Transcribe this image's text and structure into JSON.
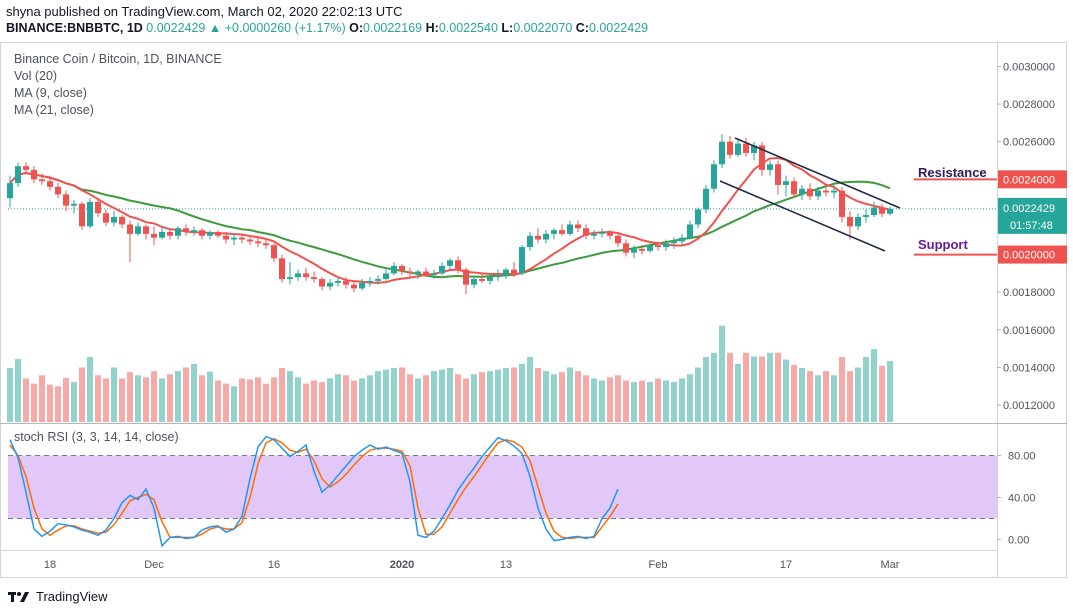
{
  "header": {
    "published": "shyna published on TradingView.com, March 02, 2020 22:02:13 UTC",
    "symbol": "BINANCE:BNBBTC, 1D",
    "last": "0.0022429",
    "change": "▲ +0.0000260 (+1.17%)",
    "o_label": "O:",
    "o": "0.0022169",
    "h_label": "H:",
    "h": "0.0022540",
    "l_label": "L:",
    "l": "0.0022070",
    "c_label": "C:",
    "c": "0.0022429"
  },
  "legend": {
    "title": "Binance Coin / Bitcoin, 1D, BINANCE",
    "vol": "Vol (20)",
    "ma9": "MA (9, close)",
    "ma21": "MA (21, close)",
    "stoch": "stoch RSI (3, 3, 14, 14, close)"
  },
  "annotations": {
    "resistance": "Resistance",
    "support": "Support",
    "resistance_price": "0.0024000",
    "support_price": "0.0020000",
    "current_price": "0.0022429",
    "countdown": "01:57:48"
  },
  "footer": {
    "brand": "TradingView"
  },
  "colors": {
    "up": "#26a69a",
    "down": "#ef5350",
    "ma9": "#f2524f",
    "ma21": "#3d9b3d",
    "stoch_k": "#2196f3",
    "stoch_d": "#ff6d00",
    "stoch_band": "#e1c8f8",
    "channel": "#1e2a4a",
    "resistance_text": "#311b58",
    "support_text": "#6a1b9a"
  },
  "chart_data": {
    "type": "candlestick",
    "price_axis": {
      "ticks": [
        "0.0030000",
        "0.0028000",
        "0.0026000",
        "0.0024000",
        "0.0022429",
        "0.0020000",
        "0.0018000",
        "0.0016000",
        "0.0014000",
        "0.0012000"
      ],
      "ylim": [
        0.00111,
        0.00313
      ]
    },
    "stoch_axis": {
      "ticks": [
        "80.00",
        "40.00",
        "0.00"
      ],
      "ylim": [
        -10,
        110
      ],
      "band": [
        20,
        80
      ]
    },
    "x_ticks": [
      {
        "label": "18",
        "index": 5
      },
      {
        "label": "Dec",
        "index": 18
      },
      {
        "label": "16",
        "index": 33
      },
      {
        "label": "2020",
        "index": 49
      },
      {
        "label": "13",
        "index": 62
      },
      {
        "label": "Feb",
        "index": 81
      },
      {
        "label": "17",
        "index": 97
      },
      {
        "label": "Mar",
        "index": 110
      }
    ],
    "candles": [
      [
        0.0023,
        0.00242,
        0.00225,
        0.00238
      ],
      [
        0.00238,
        0.00249,
        0.00236,
        0.00247
      ],
      [
        0.00247,
        0.00249,
        0.00243,
        0.00245
      ],
      [
        0.00245,
        0.00247,
        0.00238,
        0.0024
      ],
      [
        0.0024,
        0.00243,
        0.00237,
        0.00239
      ],
      [
        0.00239,
        0.00242,
        0.00234,
        0.00236
      ],
      [
        0.00236,
        0.00238,
        0.0023,
        0.00232
      ],
      [
        0.00232,
        0.00234,
        0.00223,
        0.00226
      ],
      [
        0.00226,
        0.00229,
        0.00222,
        0.00227
      ],
      [
        0.00227,
        0.00228,
        0.00213,
        0.00215
      ],
      [
        0.00215,
        0.0023,
        0.00214,
        0.00228
      ],
      [
        0.00228,
        0.0023,
        0.0022,
        0.00222
      ],
      [
        0.00222,
        0.00224,
        0.00215,
        0.00217
      ],
      [
        0.00217,
        0.00223,
        0.00215,
        0.0022
      ],
      [
        0.0022,
        0.00221,
        0.00214,
        0.00216
      ],
      [
        0.00216,
        0.00218,
        0.00196,
        0.00211
      ],
      [
        0.00211,
        0.00217,
        0.0021,
        0.00215
      ],
      [
        0.00215,
        0.00216,
        0.00208,
        0.00211
      ],
      [
        0.00211,
        0.00215,
        0.00205,
        0.00209
      ],
      [
        0.00209,
        0.00215,
        0.00208,
        0.00212
      ],
      [
        0.00212,
        0.00214,
        0.00208,
        0.0021
      ],
      [
        0.0021,
        0.00215,
        0.00208,
        0.00214
      ],
      [
        0.00214,
        0.00216,
        0.0021,
        0.00212
      ],
      [
        0.00212,
        0.00215,
        0.0021,
        0.00213
      ],
      [
        0.00213,
        0.00214,
        0.00208,
        0.0021
      ],
      [
        0.0021,
        0.00213,
        0.00208,
        0.00212
      ],
      [
        0.00212,
        0.00213,
        0.00209,
        0.0021
      ],
      [
        0.0021,
        0.00212,
        0.00206,
        0.00208
      ],
      [
        0.00208,
        0.00211,
        0.00205,
        0.00209
      ],
      [
        0.00209,
        0.00211,
        0.00206,
        0.00208
      ],
      [
        0.00208,
        0.0021,
        0.00205,
        0.00207
      ],
      [
        0.00207,
        0.0021,
        0.00204,
        0.00206
      ],
      [
        0.00206,
        0.00208,
        0.00203,
        0.00205
      ],
      [
        0.00205,
        0.00206,
        0.00196,
        0.00198
      ],
      [
        0.00198,
        0.002,
        0.00185,
        0.00187
      ],
      [
        0.00187,
        0.00196,
        0.00184,
        0.00188
      ],
      [
        0.00188,
        0.00192,
        0.00186,
        0.0019
      ],
      [
        0.0019,
        0.00193,
        0.00186,
        0.00188
      ],
      [
        0.00188,
        0.00191,
        0.00185,
        0.00187
      ],
      [
        0.00187,
        0.00188,
        0.00181,
        0.00183
      ],
      [
        0.00183,
        0.00187,
        0.00181,
        0.00185
      ],
      [
        0.00185,
        0.00188,
        0.00183,
        0.00186
      ],
      [
        0.00186,
        0.00188,
        0.00182,
        0.00184
      ],
      [
        0.00184,
        0.00186,
        0.0018,
        0.00182
      ],
      [
        0.00182,
        0.00187,
        0.00181,
        0.00185
      ],
      [
        0.00185,
        0.00188,
        0.00183,
        0.00186
      ],
      [
        0.00186,
        0.00189,
        0.00184,
        0.00187
      ],
      [
        0.00187,
        0.00192,
        0.00186,
        0.0019
      ],
      [
        0.0019,
        0.00196,
        0.00189,
        0.00194
      ],
      [
        0.00194,
        0.00195,
        0.00189,
        0.00191
      ],
      [
        0.00191,
        0.00193,
        0.00188,
        0.0019
      ],
      [
        0.0019,
        0.00192,
        0.00187,
        0.00191
      ],
      [
        0.00191,
        0.00193,
        0.00188,
        0.00189
      ],
      [
        0.00189,
        0.00192,
        0.00187,
        0.0019
      ],
      [
        0.0019,
        0.00196,
        0.00189,
        0.00194
      ],
      [
        0.00194,
        0.00198,
        0.00192,
        0.00197
      ],
      [
        0.00197,
        0.00199,
        0.0019,
        0.00192
      ],
      [
        0.00192,
        0.00193,
        0.00179,
        0.00184
      ],
      [
        0.00184,
        0.00189,
        0.00182,
        0.00187
      ],
      [
        0.00187,
        0.0019,
        0.00185,
        0.00186
      ],
      [
        0.00186,
        0.00189,
        0.00184,
        0.00188
      ],
      [
        0.00188,
        0.00192,
        0.00186,
        0.00189
      ],
      [
        0.00189,
        0.00193,
        0.00187,
        0.00192
      ],
      [
        0.00192,
        0.00196,
        0.00188,
        0.0019
      ],
      [
        0.0019,
        0.00205,
        0.00189,
        0.00204
      ],
      [
        0.00204,
        0.00212,
        0.00202,
        0.0021
      ],
      [
        0.0021,
        0.00214,
        0.00206,
        0.00208
      ],
      [
        0.00208,
        0.00213,
        0.00206,
        0.00211
      ],
      [
        0.00211,
        0.00214,
        0.00208,
        0.00213
      ],
      [
        0.00213,
        0.00216,
        0.0021,
        0.00211
      ],
      [
        0.00211,
        0.00218,
        0.0021,
        0.00216
      ],
      [
        0.00216,
        0.00218,
        0.00212,
        0.00214
      ],
      [
        0.00214,
        0.00216,
        0.00208,
        0.0021
      ],
      [
        0.0021,
        0.00213,
        0.00208,
        0.00211
      ],
      [
        0.00211,
        0.00214,
        0.00209,
        0.00212
      ],
      [
        0.00212,
        0.00213,
        0.00208,
        0.0021
      ],
      [
        0.0021,
        0.00212,
        0.00204,
        0.00206
      ],
      [
        0.00206,
        0.00208,
        0.00199,
        0.00201
      ],
      [
        0.00201,
        0.00205,
        0.00198,
        0.00203
      ],
      [
        0.00203,
        0.00205,
        0.002,
        0.00202
      ],
      [
        0.00202,
        0.00206,
        0.00201,
        0.00205
      ],
      [
        0.00205,
        0.00207,
        0.00202,
        0.00204
      ],
      [
        0.00204,
        0.00208,
        0.00202,
        0.00206
      ],
      [
        0.00206,
        0.00209,
        0.00203,
        0.00207
      ],
      [
        0.00207,
        0.00211,
        0.00205,
        0.00209
      ],
      [
        0.00209,
        0.00218,
        0.00208,
        0.00216
      ],
      [
        0.00216,
        0.00225,
        0.00214,
        0.00224
      ],
      [
        0.00224,
        0.00237,
        0.00222,
        0.00235
      ],
      [
        0.00235,
        0.0025,
        0.00233,
        0.00248
      ],
      [
        0.00248,
        0.00264,
        0.00246,
        0.0026
      ],
      [
        0.0026,
        0.00263,
        0.00251,
        0.00253
      ],
      [
        0.00253,
        0.00261,
        0.00252,
        0.00259
      ],
      [
        0.00259,
        0.00262,
        0.00252,
        0.00254
      ],
      [
        0.00254,
        0.0026,
        0.0025,
        0.00258
      ],
      [
        0.00258,
        0.0026,
        0.00242,
        0.00245
      ],
      [
        0.00245,
        0.0025,
        0.00242,
        0.00248
      ],
      [
        0.00248,
        0.0025,
        0.00232,
        0.00237
      ],
      [
        0.00237,
        0.00242,
        0.00231,
        0.00239
      ],
      [
        0.00239,
        0.00241,
        0.0023,
        0.00232
      ],
      [
        0.00232,
        0.00237,
        0.00229,
        0.00235
      ],
      [
        0.00235,
        0.00238,
        0.00229,
        0.00231
      ],
      [
        0.00231,
        0.00236,
        0.00229,
        0.00234
      ],
      [
        0.00234,
        0.00236,
        0.00231,
        0.00233
      ],
      [
        0.00233,
        0.00237,
        0.0023,
        0.00234
      ],
      [
        0.00234,
        0.00236,
        0.00217,
        0.0022
      ],
      [
        0.0022,
        0.00223,
        0.00208,
        0.00215
      ],
      [
        0.00215,
        0.00222,
        0.00213,
        0.0022
      ],
      [
        0.0022,
        0.00224,
        0.00217,
        0.00221
      ],
      [
        0.00221,
        0.00228,
        0.0022,
        0.00225
      ],
      [
        0.00225,
        0.00227,
        0.0022,
        0.002217
      ],
      [
        0.002217,
        0.002254,
        0.002207,
        0.002243
      ]
    ],
    "volume": [
      0.0013972,
      0.0014444,
      0.0013416,
      0.0013139,
      0.0013583,
      0.0013083,
      0.0013,
      0.0013444,
      0.0013222,
      0.0014,
      0.0014556,
      0.0013583,
      0.0013417,
      0.0014,
      0.0013417,
      0.001375,
      0.0013583,
      0.0013472,
      0.0013806,
      0.0013417,
      0.0013639,
      0.0013806,
      0.0014,
      0.0014194,
      0.0013583,
      0.0013778,
      0.0013306,
      0.0013139,
      0.0013,
      0.0013417,
      0.0013361,
      0.0013472,
      0.0013139,
      0.0013472,
      0.0013972,
      0.0013806,
      0.0013472,
      0.0013139,
      0.0013306,
      0.0013222,
      0.0013417,
      0.0013639,
      0.0013583,
      0.0013306,
      0.0013417,
      0.0013583,
      0.0013806,
      0.0013889,
      0.0013972,
      0.0014,
      0.0013639,
      0.0013417,
      0.0013583,
      0.0013806,
      0.0013889,
      0.0013972,
      0.0013639,
      0.0013417,
      0.0013639,
      0.001375,
      0.0013806,
      0.0013889,
      0.0013972,
      0.0014,
      0.0014194,
      0.0014556,
      0.0013972,
      0.0013806,
      0.0013639,
      0.001375,
      0.0014,
      0.0013806,
      0.0013583,
      0.0013417,
      0.0013306,
      0.0013472,
      0.0013583,
      0.0013306,
      0.0013222,
      0.0013306,
      0.0013222,
      0.0013417,
      0.0013306,
      0.0013222,
      0.0013417,
      0.0013639,
      0.0014,
      0.0014556,
      0.0014778,
      0.0016222,
      0.0014778,
      0.0014194,
      0.0014778,
      0.0014583,
      0.0014583,
      0.0014778,
      0.0014778,
      0.0014417,
      0.0014139,
      0.0013972,
      0.0013806,
      0.0013583,
      0.0013806,
      0.0013583,
      0.0014556,
      0.0013806,
      0.0014,
      0.0014556,
      0.0014972,
      0.0014083,
      0.0014333
    ],
    "stoch_k": [
      95,
      78,
      45,
      10,
      3,
      8,
      15,
      14,
      12,
      9,
      7,
      4,
      9,
      20,
      35,
      42,
      38,
      48,
      30,
      -6,
      2,
      3,
      1,
      2,
      9,
      12,
      13,
      7,
      10,
      22,
      58,
      88,
      98,
      95,
      87,
      79,
      84,
      90,
      65,
      45,
      52,
      61,
      70,
      79,
      85,
      90,
      86,
      88,
      85,
      82,
      55,
      4,
      2,
      8,
      20,
      33,
      47,
      58,
      68,
      79,
      88,
      97,
      94,
      89,
      82,
      60,
      30,
      10,
      -1,
      0,
      2,
      3,
      1,
      3,
      20,
      30,
      48
    ],
    "stoch_d": [
      90,
      80,
      60,
      30,
      10,
      4,
      9,
      13,
      13,
      10,
      8,
      6,
      7,
      14,
      25,
      37,
      40,
      43,
      38,
      17,
      2,
      2,
      2,
      2,
      5,
      10,
      12,
      10,
      10,
      16,
      40,
      72,
      92,
      96,
      92,
      85,
      83,
      86,
      75,
      58,
      50,
      55,
      62,
      71,
      79,
      85,
      87,
      87,
      86,
      84,
      70,
      30,
      5,
      5,
      12,
      25,
      38,
      50,
      60,
      71,
      82,
      92,
      95,
      93,
      88,
      75,
      50,
      25,
      8,
      2,
      1,
      2,
      2,
      2,
      12,
      22,
      34
    ]
  }
}
